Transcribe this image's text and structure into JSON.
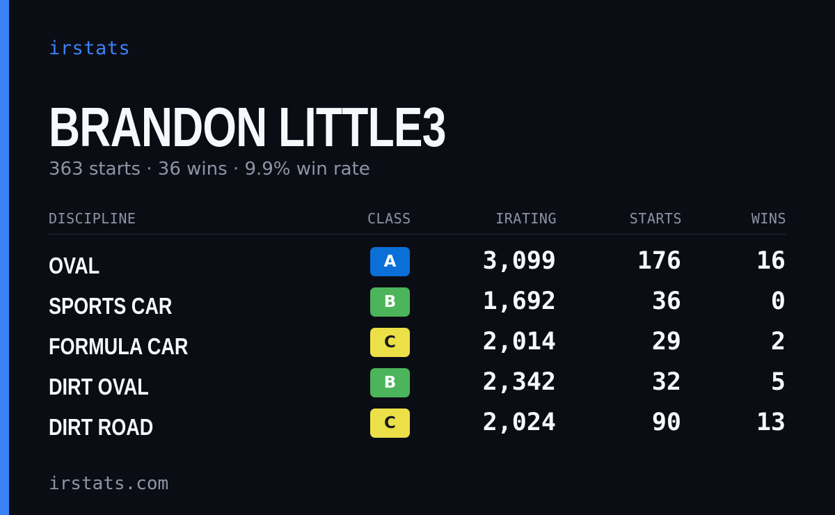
{
  "brand": "irstats",
  "driver": {
    "name": "BRANDON LITTLE3",
    "summary": "363 starts · 36 wins · 9.9% win rate"
  },
  "table": {
    "headers": {
      "discipline": "DISCIPLINE",
      "class": "CLASS",
      "irating": "IRATING",
      "starts": "STARTS",
      "wins": "WINS"
    },
    "rows": [
      {
        "discipline": "OVAL",
        "class": "A",
        "irating": "3,099",
        "starts": "176",
        "wins": "16"
      },
      {
        "discipline": "SPORTS CAR",
        "class": "B",
        "irating": "1,692",
        "starts": "36",
        "wins": "0"
      },
      {
        "discipline": "FORMULA CAR",
        "class": "C",
        "irating": "2,014",
        "starts": "29",
        "wins": "2"
      },
      {
        "discipline": "DIRT OVAL",
        "class": "B",
        "irating": "2,342",
        "starts": "32",
        "wins": "5"
      },
      {
        "discipline": "DIRT ROAD",
        "class": "C",
        "irating": "2,024",
        "starts": "90",
        "wins": "13"
      }
    ]
  },
  "class_colors": {
    "A": {
      "bg": "#0a6fd6",
      "fg": "#ffffff"
    },
    "B": {
      "bg": "#4cb45a",
      "fg": "#ffffff"
    },
    "C": {
      "bg": "#ece048",
      "fg": "#1a1a1a"
    }
  },
  "colors": {
    "accent": "#3b82f6",
    "background": "#0b0d14",
    "muted": "#8d94a6"
  },
  "footer": "irstats.com"
}
